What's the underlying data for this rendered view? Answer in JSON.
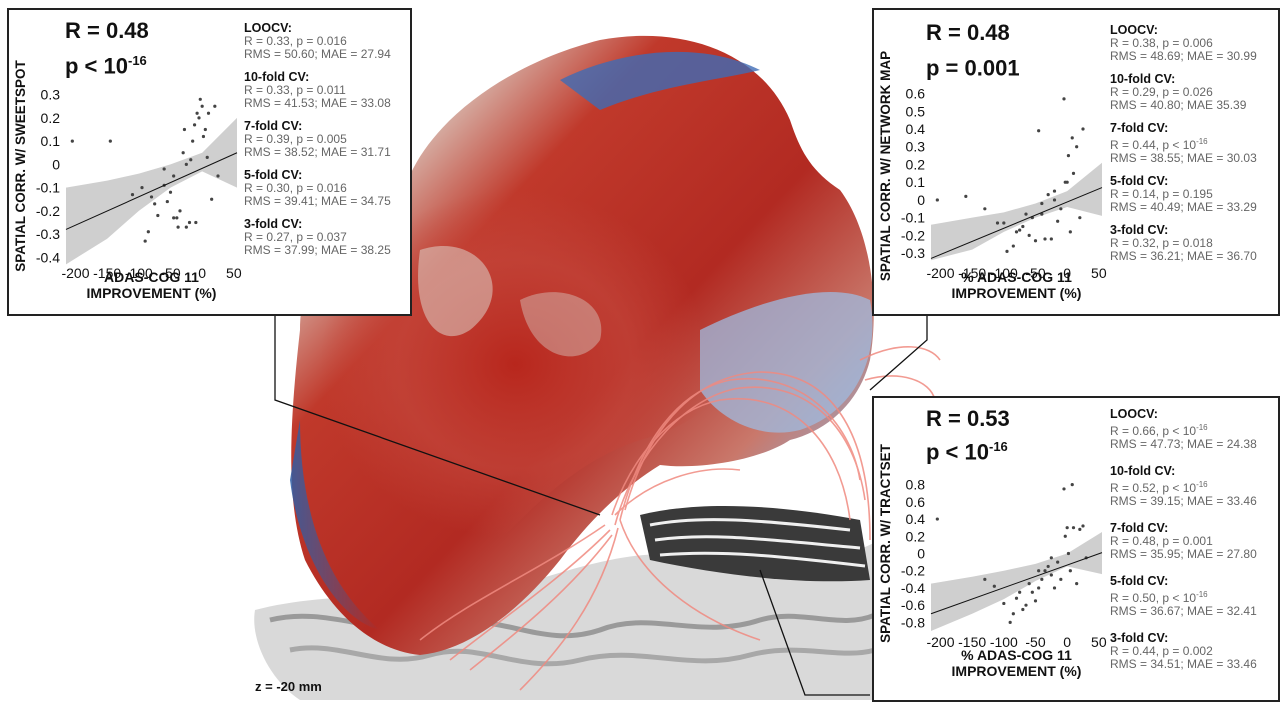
{
  "depth_label": "z = -20 mm",
  "panels": [
    {
      "id": "sweetspot",
      "stat_r": "R = 0.48",
      "stat_p_base": "p < 10",
      "stat_p_exp": "-16",
      "cv": [
        {
          "title": "LOOCV:",
          "line1": "R = 0.33, p = 0.016",
          "line2": "RMS = 50.60; MAE = 27.94"
        },
        {
          "title": "10-fold CV:",
          "line1": "R = 0.33, p = 0.011",
          "line2": "RMS = 41.53; MAE = 33.08"
        },
        {
          "title": "7-fold CV:",
          "line1": "R = 0.39, p = 0.005",
          "line2": "RMS = 38.52; MAE = 31.71"
        },
        {
          "title": "5-fold CV:",
          "line1": "R = 0.30, p = 0.016",
          "line2": "RMS = 39.41; MAE = 34.75"
        },
        {
          "title": "3-fold CV:",
          "line1": "R = 0.27, p = 0.037",
          "line2": "RMS = 37.99; MAE = 38.25"
        }
      ]
    },
    {
      "id": "network",
      "stat_r": "R = 0.48",
      "stat_p_base": "p = 0.001",
      "stat_p_exp": "",
      "cv": [
        {
          "title": "LOOCV:",
          "line1": "R = 0.38, p = 0.006",
          "line2": "RMS = 48.69; MAE = 30.99"
        },
        {
          "title": "10-fold CV:",
          "line1": "R = 0.29, p = 0.026",
          "line2": "RMS = 40.80; MAE 35.39"
        },
        {
          "title": "7-fold CV:",
          "line1": "R = 0.44, p < 10",
          "line1_exp": "-16",
          "line2": "RMS = 38.55; MAE = 30.03"
        },
        {
          "title": "5-fold CV:",
          "line1": "R = 0.14, p = 0.195",
          "line2": "RMS = 40.49; MAE = 33.29"
        },
        {
          "title": "3-fold CV:",
          "line1": "R = 0.32, p = 0.018",
          "line2": "RMS = 36.21; MAE = 36.70"
        }
      ]
    },
    {
      "id": "tractset",
      "stat_r": "R = 0.53",
      "stat_p_base": "p < 10",
      "stat_p_exp": "-16",
      "cv": [
        {
          "title": "LOOCV:",
          "line1": "R = 0.66, p < 10",
          "line1_exp": "-16",
          "line2": "RMS = 47.73; MAE = 24.38"
        },
        {
          "title": "10-fold CV:",
          "line1": "R = 0.52, p < 10",
          "line1_exp": "-16",
          "line2": "RMS = 39.15; MAE = 33.46"
        },
        {
          "title": "7-fold CV:",
          "line1": "R = 0.48, p = 0.001",
          "line2": "RMS = 35.95; MAE = 27.80"
        },
        {
          "title": "5-fold CV:",
          "line1": "R = 0.50, p < 10",
          "line1_exp": "-16",
          "line2": "RMS = 36.67; MAE = 32.41"
        },
        {
          "title": "3-fold CV:",
          "line1": "R = 0.44, p = 0.002",
          "line2": "RMS = 34.51; MAE = 33.46"
        }
      ]
    }
  ],
  "chart_data": [
    {
      "type": "scatter",
      "title": "",
      "xlabel": "ADAS-COG 11 IMPROVEMENT (%)",
      "ylabel": "SPATIAL CORR. W/ SWEETSPOT",
      "xlim": [
        -215,
        55
      ],
      "ylim": [
        -0.42,
        0.32
      ],
      "xticks": [
        -200,
        -150,
        -100,
        -50,
        0,
        50
      ],
      "yticks": [
        0.3,
        0.2,
        0.1,
        0,
        -0.1,
        -0.2,
        -0.3,
        -0.4
      ],
      "fit": {
        "x": [
          -215,
          55
        ],
        "y": [
          -0.28,
          0.05
        ]
      },
      "ci_upper": [
        [
          -215,
          -0.1
        ],
        [
          -150,
          -0.07
        ],
        [
          -100,
          -0.04
        ],
        [
          -50,
          0.0
        ],
        [
          0,
          0.05
        ],
        [
          55,
          0.2
        ]
      ],
      "ci_lower": [
        [
          -215,
          -0.43
        ],
        [
          -150,
          -0.32
        ],
        [
          -100,
          -0.2
        ],
        [
          -50,
          -0.1
        ],
        [
          0,
          -0.03
        ],
        [
          55,
          -0.1
        ]
      ],
      "points": [
        [
          -205,
          0.1
        ],
        [
          -145,
          0.1
        ],
        [
          -110,
          -0.13
        ],
        [
          -95,
          -0.1
        ],
        [
          -90,
          -0.33
        ],
        [
          -85,
          -0.29
        ],
        [
          -80,
          -0.14
        ],
        [
          -75,
          -0.17
        ],
        [
          -70,
          -0.22
        ],
        [
          -60,
          -0.09
        ],
        [
          -55,
          -0.16
        ],
        [
          -50,
          -0.12
        ],
        [
          -45,
          -0.23
        ],
        [
          -40,
          -0.23
        ],
        [
          -38,
          -0.27
        ],
        [
          -35,
          -0.2
        ],
        [
          -30,
          0.05
        ],
        [
          -28,
          0.15
        ],
        [
          -25,
          -0.27
        ],
        [
          -20,
          -0.25
        ],
        [
          -18,
          0.02
        ],
        [
          -15,
          0.1
        ],
        [
          -12,
          0.17
        ],
        [
          -10,
          -0.25
        ],
        [
          -8,
          0.22
        ],
        [
          -5,
          0.2
        ],
        [
          -3,
          0.28
        ],
        [
          0,
          0.25
        ],
        [
          2,
          0.12
        ],
        [
          5,
          0.15
        ],
        [
          8,
          0.03
        ],
        [
          10,
          0.22
        ],
        [
          15,
          -0.15
        ],
        [
          20,
          0.25
        ],
        [
          25,
          -0.05
        ],
        [
          -60,
          -0.02
        ],
        [
          -45,
          -0.05
        ],
        [
          -25,
          0.0
        ]
      ]
    },
    {
      "type": "scatter",
      "title": "",
      "xlabel": "% ADAS-COG 11 IMPROVEMENT (%)",
      "ylabel": "SPATIAL CORR. W/ NETWORK MAP",
      "xlim": [
        -215,
        55
      ],
      "ylim": [
        -0.35,
        0.62
      ],
      "xticks": [
        -200,
        -150,
        -100,
        -50,
        0,
        50
      ],
      "yticks": [
        0.6,
        0.5,
        0.4,
        0.3,
        0.2,
        0.1,
        0,
        -0.1,
        -0.2,
        -0.3
      ],
      "fit": {
        "x": [
          -215,
          55
        ],
        "y": [
          -0.33,
          0.07
        ]
      },
      "ci_upper": [
        [
          -215,
          -0.14
        ],
        [
          -150,
          -0.1
        ],
        [
          -100,
          -0.07
        ],
        [
          -50,
          -0.02
        ],
        [
          0,
          0.05
        ],
        [
          55,
          0.21
        ]
      ],
      "ci_lower": [
        [
          -215,
          -0.34
        ],
        [
          -150,
          -0.28
        ],
        [
          -100,
          -0.18
        ],
        [
          -50,
          -0.1
        ],
        [
          0,
          -0.04
        ],
        [
          55,
          -0.09
        ]
      ],
      "points": [
        [
          -205,
          0.0
        ],
        [
          -160,
          0.02
        ],
        [
          -130,
          -0.05
        ],
        [
          -110,
          -0.13
        ],
        [
          -100,
          -0.13
        ],
        [
          -95,
          -0.29
        ],
        [
          -85,
          -0.26
        ],
        [
          -80,
          -0.18
        ],
        [
          -75,
          -0.17
        ],
        [
          -70,
          -0.15
        ],
        [
          -60,
          -0.2
        ],
        [
          -55,
          -0.1
        ],
        [
          -50,
          -0.23
        ],
        [
          -45,
          0.39
        ],
        [
          -40,
          -0.08
        ],
        [
          -35,
          -0.22
        ],
        [
          -30,
          0.03
        ],
        [
          -25,
          -0.22
        ],
        [
          -20,
          0.05
        ],
        [
          -15,
          -0.12
        ],
        [
          -10,
          -0.05
        ],
        [
          -5,
          0.57
        ],
        [
          -3,
          0.1
        ],
        [
          0,
          0.1
        ],
        [
          2,
          0.25
        ],
        [
          5,
          -0.18
        ],
        [
          8,
          0.35
        ],
        [
          10,
          0.15
        ],
        [
          15,
          0.3
        ],
        [
          20,
          -0.1
        ],
        [
          25,
          0.4
        ],
        [
          -65,
          -0.08
        ],
        [
          -40,
          -0.02
        ],
        [
          -20,
          0.0
        ]
      ]
    },
    {
      "type": "scatter",
      "title": "",
      "xlabel": "% ADAS-COG 11 IMPROVEMENT (%)",
      "ylabel": "SPATIAL CORR. W/ TRACTSET",
      "xlim": [
        -215,
        55
      ],
      "ylim": [
        -0.9,
        0.9
      ],
      "xticks": [
        -200,
        -150,
        -100,
        -50,
        0,
        50
      ],
      "yticks": [
        0.8,
        0.6,
        0.4,
        0.2,
        0,
        -0.2,
        -0.4,
        -0.6,
        -0.8
      ],
      "fit": {
        "x": [
          -215,
          55
        ],
        "y": [
          -0.7,
          0.01
        ]
      },
      "ci_upper": [
        [
          -215,
          -0.35
        ],
        [
          -150,
          -0.27
        ],
        [
          -100,
          -0.2
        ],
        [
          -50,
          -0.12
        ],
        [
          0,
          0.0
        ],
        [
          55,
          0.25
        ]
      ],
      "ci_lower": [
        [
          -215,
          -0.9
        ],
        [
          -150,
          -0.7
        ],
        [
          -100,
          -0.53
        ],
        [
          -50,
          -0.32
        ],
        [
          0,
          -0.15
        ],
        [
          55,
          -0.24
        ]
      ],
      "points": [
        [
          -205,
          0.4
        ],
        [
          -130,
          -0.3
        ],
        [
          -115,
          -0.38
        ],
        [
          -100,
          -0.58
        ],
        [
          -90,
          -0.8
        ],
        [
          -85,
          -0.7
        ],
        [
          -80,
          -0.52
        ],
        [
          -75,
          -0.45
        ],
        [
          -70,
          -0.65
        ],
        [
          -60,
          -0.35
        ],
        [
          -55,
          -0.45
        ],
        [
          -50,
          -0.55
        ],
        [
          -45,
          -0.4
        ],
        [
          -40,
          -0.3
        ],
        [
          -35,
          -0.2
        ],
        [
          -30,
          -0.15
        ],
        [
          -25,
          -0.25
        ],
        [
          -20,
          -0.4
        ],
        [
          -15,
          -0.1
        ],
        [
          -10,
          -0.3
        ],
        [
          -5,
          0.75
        ],
        [
          -3,
          0.2
        ],
        [
          0,
          0.3
        ],
        [
          2,
          0.0
        ],
        [
          5,
          -0.2
        ],
        [
          8,
          0.8
        ],
        [
          10,
          0.3
        ],
        [
          15,
          -0.35
        ],
        [
          20,
          0.28
        ],
        [
          25,
          0.32
        ],
        [
          30,
          -0.05
        ],
        [
          -65,
          -0.6
        ],
        [
          -45,
          -0.2
        ],
        [
          -25,
          -0.05
        ]
      ]
    }
  ]
}
